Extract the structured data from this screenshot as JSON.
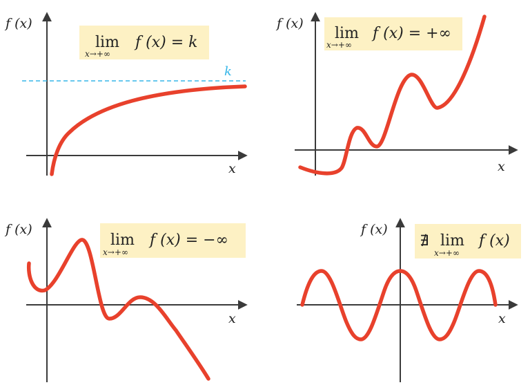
{
  "colors": {
    "curve": "#e8412c",
    "axis": "#3a3a3a",
    "box": "#fdf1c4",
    "asymptote": "#35b6e8",
    "text": "#222222"
  },
  "axis_labels": {
    "y": "f (x)",
    "x": "x"
  },
  "panels": [
    {
      "id": "limit-k",
      "lim_word": "lim",
      "under": "x→+∞",
      "expr": "f (x) = k",
      "asymptote_label": "k"
    },
    {
      "id": "limit-plus-infinity",
      "lim_word": "lim",
      "under": "x→+∞",
      "expr": "f (x) = +∞"
    },
    {
      "id": "limit-minus-infinity",
      "lim_word": "lim",
      "under": "x→+∞",
      "expr": "f (x) = −∞"
    },
    {
      "id": "limit-does-not-exist",
      "prefix": "∄",
      "lim_word": "lim",
      "under": "x→+∞",
      "expr": "f (x)"
    }
  ]
}
